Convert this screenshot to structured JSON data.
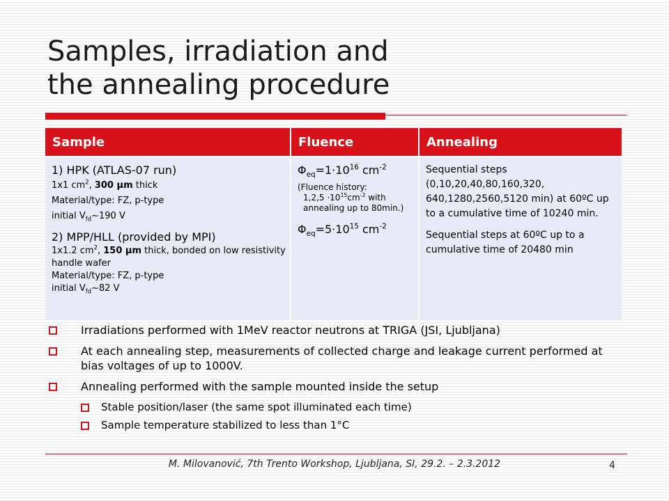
{
  "title": {
    "line1": "Samples, irradiation and",
    "line2": "the annealing procedure"
  },
  "table": {
    "headers": [
      "Sample",
      "Fluence",
      "Annealing"
    ],
    "sample1": {
      "name": "1) HPK (ATLAS-07 run)",
      "size_pre": "1x1 cm",
      "size_sup": "2",
      "size_sep": ", ",
      "thickness_value": "300",
      "thickness_unit": "m",
      "thickness_suffix": " thick",
      "material": "Material/type: FZ, p-type",
      "vfd_pre": "initial V",
      "vfd_sub": "fd",
      "vfd_post": "~190 V"
    },
    "sample2": {
      "name": "2) MPP/HLL (provided by MPI)",
      "size_pre": "1x1.2 cm",
      "size_sup": "2",
      "size_sep": ", ",
      "thickness_value": "150",
      "thickness_unit": "m",
      "thickness_suffix": " thick, bonded on low resistivity handle wafer",
      "material": "Material/type: FZ, p-type",
      "vfd_pre": "initial V",
      "vfd_sub": "fd",
      "vfd_post": "~82 V"
    },
    "fluence1": {
      "phi": "Φ",
      "sub": "eq",
      "val": "=1·10",
      "exp": "16",
      "unit": " cm",
      "unit_exp": "-2"
    },
    "fluence_history": {
      "line1": "(Fluence history:",
      "line2_pre": "1,2,5 ·10",
      "line2_exp": "15",
      "line2_mid": "cm",
      "line2_unit_exp": "-2",
      "line2_post": " with annealing up to 80min.)"
    },
    "fluence2": {
      "phi": "Φ",
      "sub": "eq",
      "val": "=5·10",
      "exp": "15",
      "unit": " cm",
      "unit_exp": "-2"
    },
    "annealing1": "Sequential steps (0,10,20,40,80,160,320, 640,1280,2560,5120 min) at 60ºC up to a cumulative time of 10240 min.",
    "annealing2": "Sequential steps at 60ºC up to a cumulative time of 20480 min"
  },
  "bullets": [
    {
      "text": "Irradiations performed with 1MeV reactor neutrons at TRIGA (JSI, Ljubljana)",
      "level": 1
    },
    {
      "text": "At each annealing step, measurements of collected charge and leakage current performed at bias voltages of up to 1000V.",
      "level": 1
    },
    {
      "text": "Annealing performed with the sample mounted inside the setup",
      "level": 1
    },
    {
      "text": "Stable position/laser (the same spot illuminated each time)",
      "level": 2
    },
    {
      "text": "Sample temperature stabilized to less than 1°C",
      "level": 2
    }
  ],
  "footer": "M. Milovanović, 7th Trento Workshop, Ljubljana, SI, 29.2. – 2.3.2012",
  "page_number": "4",
  "colors": {
    "accent": "#d8121a",
    "cell_bg": "#e8eaf7"
  },
  "icons": {
    "bullet": "square-bullet-icon"
  }
}
